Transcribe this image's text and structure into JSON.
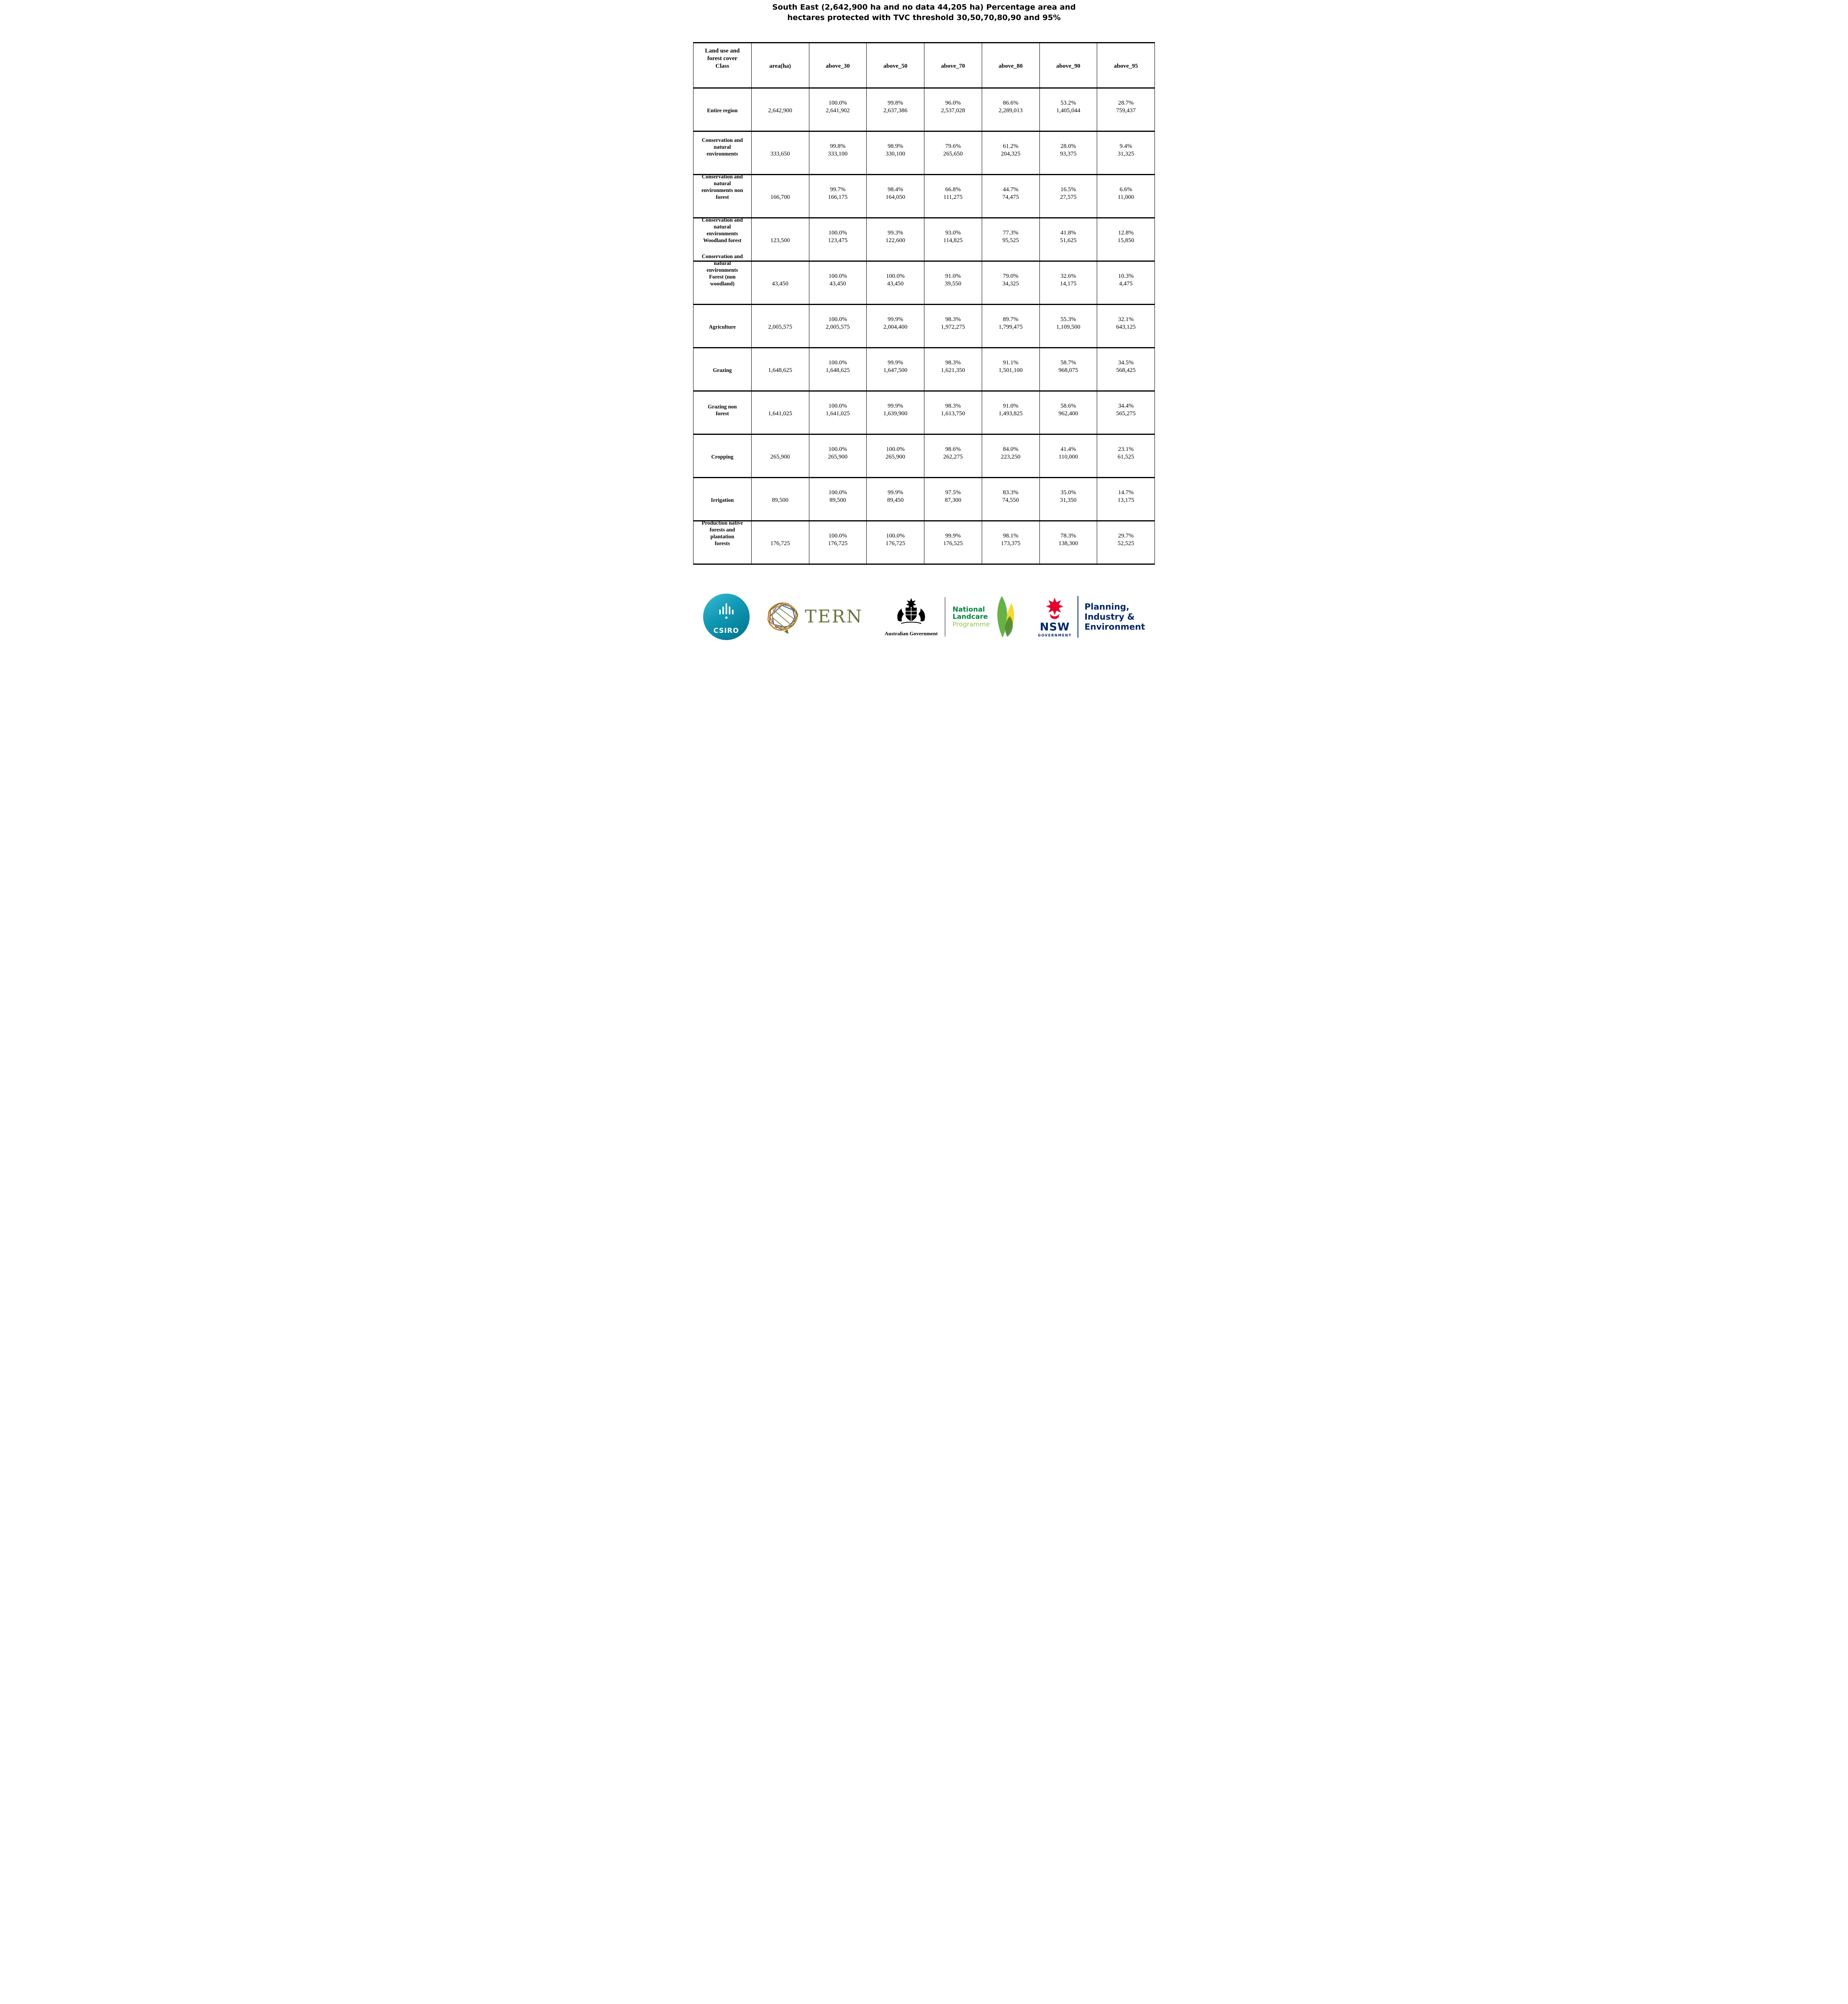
{
  "title": "South East (2,642,900 ha and no data 44,205 ha) Percentage area and\nhectares protected with TVC threshold 30,50,70,80,90 and 95%",
  "table": {
    "columns": [
      "Land use and\nforest cover\nClass",
      "area(ha)",
      "above_30",
      "above_50",
      "above_70",
      "above_80",
      "above_90",
      "above_95"
    ],
    "rows": [
      {
        "label": "Entire region",
        "area": "2,642,900",
        "values": [
          [
            "100.0%",
            "2,641,902"
          ],
          [
            "99.8%",
            "2,637,386"
          ],
          [
            "96.0%",
            "2,537,028"
          ],
          [
            "86.6%",
            "2,289,013"
          ],
          [
            "53.2%",
            "1,405,044"
          ],
          [
            "28.7%",
            "759,437"
          ]
        ]
      },
      {
        "label": "Conservation and\nnatural\nenvironments",
        "area": "333,650",
        "values": [
          [
            "99.8%",
            "333,100"
          ],
          [
            "98.9%",
            "330,100"
          ],
          [
            "79.6%",
            "265,650"
          ],
          [
            "61.2%",
            "204,325"
          ],
          [
            "28.0%",
            "93,375"
          ],
          [
            "9.4%",
            "31,325"
          ]
        ]
      },
      {
        "label": "Conservation and\nnatural\nenvironments non\nforest",
        "area": "166,700",
        "values": [
          [
            "99.7%",
            "166,175"
          ],
          [
            "98.4%",
            "164,050"
          ],
          [
            "66.8%",
            "111,275"
          ],
          [
            "44.7%",
            "74,475"
          ],
          [
            "16.5%",
            "27,575"
          ],
          [
            "6.6%",
            "11,000"
          ]
        ]
      },
      {
        "label": "Conservation and\nnatural\nenvironments\nWoodland forest",
        "area": "123,500",
        "values": [
          [
            "100.0%",
            "123,475"
          ],
          [
            "99.3%",
            "122,600"
          ],
          [
            "93.0%",
            "114,825"
          ],
          [
            "77.3%",
            "95,525"
          ],
          [
            "41.8%",
            "51,625"
          ],
          [
            "12.8%",
            "15,850"
          ]
        ]
      },
      {
        "label": "Conservation and\nnatural\nenvironments\nForest (non\nwoodland)",
        "area": "43,450",
        "values": [
          [
            "100.0%",
            "43,450"
          ],
          [
            "100.0%",
            "43,450"
          ],
          [
            "91.0%",
            "39,550"
          ],
          [
            "79.0%",
            "34,325"
          ],
          [
            "32.6%",
            "14,175"
          ],
          [
            "10.3%",
            "4,475"
          ]
        ]
      },
      {
        "label": "Agriculture",
        "area": "2,005,575",
        "values": [
          [
            "100.0%",
            "2,005,575"
          ],
          [
            "99.9%",
            "2,004,400"
          ],
          [
            "98.3%",
            "1,972,275"
          ],
          [
            "89.7%",
            "1,799,475"
          ],
          [
            "55.3%",
            "1,109,500"
          ],
          [
            "32.1%",
            "643,125"
          ]
        ]
      },
      {
        "label": "Grazing",
        "area": "1,648,625",
        "values": [
          [
            "100.0%",
            "1,648,625"
          ],
          [
            "99.9%",
            "1,647,500"
          ],
          [
            "98.3%",
            "1,621,350"
          ],
          [
            "91.1%",
            "1,501,100"
          ],
          [
            "58.7%",
            "968,075"
          ],
          [
            "34.5%",
            "568,425"
          ]
        ]
      },
      {
        "label": "Grazing non\nforest",
        "area": "1,641,025",
        "values": [
          [
            "100.0%",
            "1,641,025"
          ],
          [
            "99.9%",
            "1,639,900"
          ],
          [
            "98.3%",
            "1,613,750"
          ],
          [
            "91.0%",
            "1,493,825"
          ],
          [
            "58.6%",
            "962,400"
          ],
          [
            "34.4%",
            "565,275"
          ]
        ]
      },
      {
        "label": "Cropping",
        "area": "265,900",
        "values": [
          [
            "100.0%",
            "265,900"
          ],
          [
            "100.0%",
            "265,900"
          ],
          [
            "98.6%",
            "262,275"
          ],
          [
            "84.0%",
            "223,250"
          ],
          [
            "41.4%",
            "110,000"
          ],
          [
            "23.1%",
            "61,525"
          ]
        ]
      },
      {
        "label": "Irrigation",
        "area": "89,500",
        "values": [
          [
            "100.0%",
            "89,500"
          ],
          [
            "99.9%",
            "89,450"
          ],
          [
            "97.5%",
            "87,300"
          ],
          [
            "83.3%",
            "74,550"
          ],
          [
            "35.0%",
            "31,350"
          ],
          [
            "14.7%",
            "13,175"
          ]
        ]
      },
      {
        "label": "Production native\nforests and\nplantation\nforests",
        "area": "176,725",
        "values": [
          [
            "100.0%",
            "176,725"
          ],
          [
            "100.0%",
            "176,725"
          ],
          [
            "99.9%",
            "176,525"
          ],
          [
            "98.1%",
            "173,375"
          ],
          [
            "78.3%",
            "138,300"
          ],
          [
            "29.7%",
            "52,525"
          ]
        ]
      }
    ]
  },
  "footer": {
    "csiro": {
      "label": "CSIRO"
    },
    "tern": {
      "label": "TERN"
    },
    "ausgov": {
      "label": "Australian Government"
    },
    "landcare": {
      "lines": [
        "National",
        "Landcare",
        "Programme"
      ]
    },
    "nsw": {
      "label": "NSW",
      "sub": "GOVERNMENT"
    },
    "planning": {
      "lines": [
        "Planning,",
        "Industry &",
        "Environment"
      ]
    },
    "colors": {
      "csiro_teal": "#00a3b8",
      "tern_olive": "#6d7342",
      "landcare_green": "#00843d",
      "landcare_light_green": "#8ec641",
      "nsw_red": "#e4002b",
      "nsw_navy": "#002664"
    }
  }
}
